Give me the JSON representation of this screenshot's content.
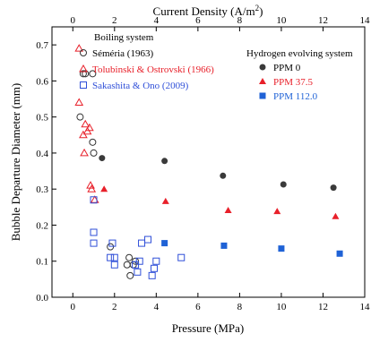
{
  "chart_data": {
    "type": "scatter",
    "title": "",
    "xlabel": "Pressure (MPa)",
    "ylabel": "Bubble Departure Diameter (mm)",
    "x2label_main": "Current Density (A/m",
    "x2label_sup": "2",
    "x2label_end": ")",
    "xlim": [
      -1,
      14
    ],
    "ylim": [
      0,
      0.75
    ],
    "x2lim": [
      -1,
      14
    ],
    "xticks": [
      0,
      2,
      4,
      6,
      8,
      10,
      12,
      14
    ],
    "yticks": [
      0.0,
      0.1,
      0.2,
      0.3,
      0.4,
      0.5,
      0.6,
      0.7
    ],
    "x2ticks": [
      0,
      2,
      4,
      6,
      8,
      10,
      12,
      14
    ],
    "legend_left": {
      "title": "Boiling system",
      "entries": [
        "Séméria (1963)",
        "Tolubinskỉ & Ostrovski (1966)",
        "Sakashita & Ono (2009)"
      ]
    },
    "legend_right": {
      "title": "Hydrogen evolving system",
      "entries": [
        "PPM 0",
        "PPM 37.5",
        "PPM 112.0"
      ]
    },
    "series": [
      {
        "name": "Séméria (1963)",
        "group": "boiling",
        "marker": "circle-open",
        "color": "#333333",
        "points": [
          [
            0.35,
            0.5
          ],
          [
            0.5,
            0.62
          ],
          [
            0.6,
            0.62
          ],
          [
            0.95,
            0.62
          ],
          [
            0.95,
            0.43
          ],
          [
            1.0,
            0.4
          ],
          [
            1.8,
            0.14
          ],
          [
            2.6,
            0.09
          ],
          [
            2.7,
            0.11
          ],
          [
            2.75,
            0.06
          ],
          [
            2.9,
            0.09
          ],
          [
            3.0,
            0.1
          ]
        ]
      },
      {
        "name": "Tolubinskỉ & Ostrovski (1966)",
        "group": "boiling",
        "marker": "triangle-open",
        "color": "#e8202a",
        "points": [
          [
            0.3,
            0.69
          ],
          [
            0.3,
            0.54
          ],
          [
            0.5,
            0.45
          ],
          [
            0.55,
            0.4
          ],
          [
            0.6,
            0.48
          ],
          [
            0.7,
            0.46
          ],
          [
            0.8,
            0.47
          ],
          [
            0.85,
            0.31
          ],
          [
            0.9,
            0.3
          ],
          [
            1.05,
            0.27
          ]
        ]
      },
      {
        "name": "Sakashita & Ono (2009)",
        "group": "boiling",
        "marker": "square-open",
        "color": "#2f4fd8",
        "points": [
          [
            1.0,
            0.27
          ],
          [
            1.0,
            0.18
          ],
          [
            1.0,
            0.15
          ],
          [
            1.8,
            0.11
          ],
          [
            1.9,
            0.15
          ],
          [
            2.0,
            0.11
          ],
          [
            2.0,
            0.09
          ],
          [
            3.0,
            0.09
          ],
          [
            3.1,
            0.07
          ],
          [
            3.2,
            0.1
          ],
          [
            3.3,
            0.15
          ],
          [
            3.6,
            0.16
          ],
          [
            3.8,
            0.06
          ],
          [
            3.9,
            0.08
          ],
          [
            4.0,
            0.1
          ],
          [
            5.2,
            0.11
          ]
        ]
      },
      {
        "name": "PPM 0",
        "group": "hydrogen",
        "marker": "circle-filled",
        "color": "#3a3a3a",
        "points": [
          [
            1.4,
            0.386
          ],
          [
            4.4,
            0.378
          ],
          [
            7.2,
            0.337
          ],
          [
            10.1,
            0.313
          ],
          [
            12.5,
            0.304
          ]
        ]
      },
      {
        "name": "PPM 37.5",
        "group": "hydrogen",
        "marker": "triangle-filled",
        "color": "#e8202a",
        "points": [
          [
            1.5,
            0.3
          ],
          [
            4.45,
            0.266
          ],
          [
            7.45,
            0.241
          ],
          [
            9.8,
            0.238
          ],
          [
            12.6,
            0.224
          ]
        ]
      },
      {
        "name": "PPM 112.0",
        "group": "hydrogen",
        "marker": "square-filled",
        "color": "#1f62d6",
        "points": [
          [
            4.4,
            0.15
          ],
          [
            7.25,
            0.143
          ],
          [
            10.0,
            0.135
          ],
          [
            12.8,
            0.121
          ]
        ]
      }
    ]
  }
}
